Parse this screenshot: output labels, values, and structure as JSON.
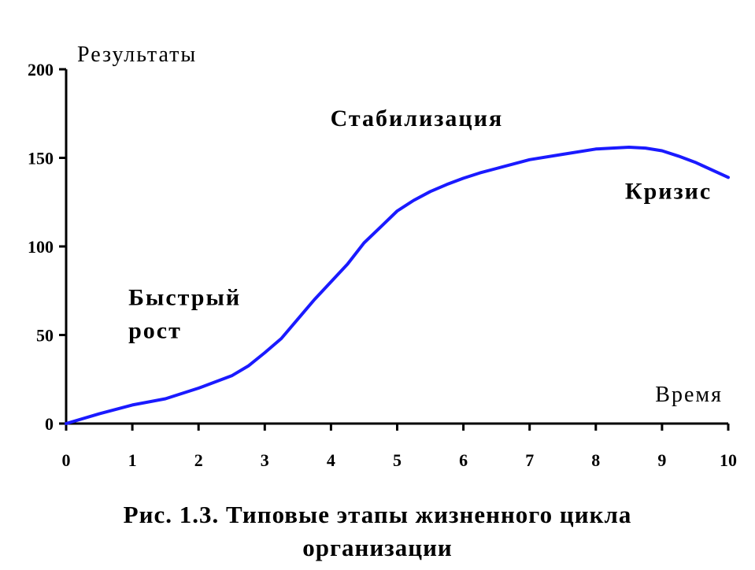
{
  "chart_data": {
    "type": "line",
    "ylabel": "Результаты",
    "xlabel": "Время",
    "xlim": [
      0,
      10
    ],
    "ylim": [
      0,
      200
    ],
    "x_ticks": [
      0,
      1,
      2,
      3,
      4,
      5,
      6,
      7,
      8,
      9,
      10
    ],
    "y_ticks": [
      0,
      50,
      100,
      150,
      200
    ],
    "grid": false,
    "series": [
      {
        "color": "#1a1aff",
        "x": [
          0,
          0.5,
          1,
          1.5,
          2,
          2.5,
          2.75,
          3,
          3.25,
          3.5,
          3.75,
          4,
          4.25,
          4.5,
          4.75,
          5,
          5.25,
          5.5,
          5.75,
          6,
          6.25,
          6.5,
          7,
          7.5,
          8,
          8.25,
          8.5,
          8.75,
          9,
          9.25,
          9.5,
          10
        ],
        "y": [
          0,
          5.5,
          10.5,
          14,
          20,
          27,
          32.5,
          40,
          48,
          59,
          70,
          80,
          90,
          102,
          111,
          120,
          126,
          131,
          135,
          138.5,
          141.5,
          144,
          149,
          152,
          155,
          155.5,
          156,
          155.5,
          154,
          151,
          147.5,
          139
        ]
      }
    ],
    "annotations": [
      {
        "lines": [
          "Быстрый",
          "рост"
        ],
        "x": 1,
        "y": 67
      },
      {
        "lines": [
          "Стабилизация"
        ],
        "x": 4.05,
        "y": 168
      },
      {
        "lines": [
          "Кризис"
        ],
        "x": 8.5,
        "y": 127
      }
    ]
  },
  "caption": {
    "line1": "Рис. 1.3.  Типовые этапы жизненного цикла",
    "line2": "организации"
  }
}
